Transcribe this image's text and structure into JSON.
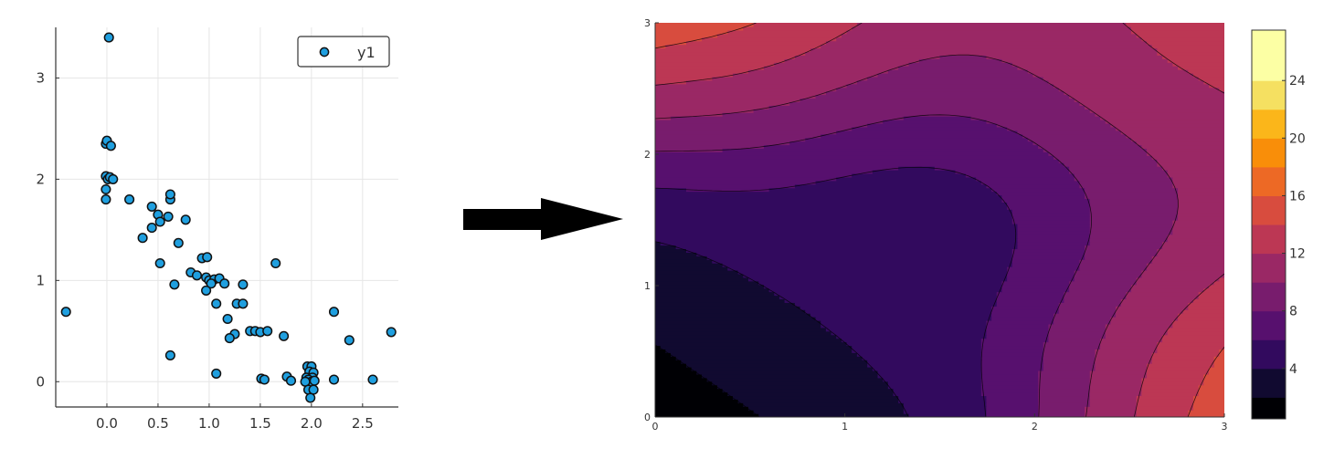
{
  "chart_data": [
    {
      "type": "scatter",
      "title": "",
      "xlabel": "",
      "ylabel": "",
      "xlim": [
        -0.5,
        2.85
      ],
      "ylim": [
        -0.25,
        3.5
      ],
      "xticks": [
        "0.0",
        "0.5",
        "1.0",
        "1.5",
        "2.0",
        "2.5"
      ],
      "xtick_values": [
        0.0,
        0.5,
        1.0,
        1.5,
        2.0,
        2.5
      ],
      "yticks": [
        "0",
        "1",
        "2",
        "3"
      ],
      "ytick_values": [
        0,
        1,
        2,
        3
      ],
      "grid": true,
      "legend": {
        "position": "top-right",
        "entries": [
          "y1"
        ]
      },
      "series": [
        {
          "name": "y1",
          "color": "#1f9fdf",
          "points": [
            [
              -0.4,
              0.69
            ],
            [
              0.02,
              3.4
            ],
            [
              -0.01,
              2.35
            ],
            [
              0.0,
              2.38
            ],
            [
              0.04,
              2.33
            ],
            [
              -0.01,
              2.03
            ],
            [
              0.01,
              2.0
            ],
            [
              0.03,
              2.02
            ],
            [
              0.06,
              2.0
            ],
            [
              -0.01,
              1.9
            ],
            [
              -0.01,
              1.8
            ],
            [
              0.22,
              1.8
            ],
            [
              0.62,
              1.8
            ],
            [
              0.62,
              1.85
            ],
            [
              0.44,
              1.73
            ],
            [
              0.5,
              1.65
            ],
            [
              0.52,
              1.58
            ],
            [
              0.44,
              1.52
            ],
            [
              0.6,
              1.63
            ],
            [
              0.77,
              1.6
            ],
            [
              0.35,
              1.42
            ],
            [
              0.7,
              1.37
            ],
            [
              0.52,
              1.17
            ],
            [
              1.65,
              1.17
            ],
            [
              0.82,
              1.08
            ],
            [
              0.88,
              1.05
            ],
            [
              0.93,
              1.22
            ],
            [
              0.98,
              1.23
            ],
            [
              0.97,
              1.03
            ],
            [
              1.0,
              1.0
            ],
            [
              1.05,
              1.01
            ],
            [
              1.1,
              1.02
            ],
            [
              1.15,
              0.97
            ],
            [
              1.02,
              0.97
            ],
            [
              0.97,
              0.9
            ],
            [
              1.33,
              0.96
            ],
            [
              0.66,
              0.96
            ],
            [
              1.07,
              0.77
            ],
            [
              1.27,
              0.77
            ],
            [
              1.33,
              0.77
            ],
            [
              1.18,
              0.62
            ],
            [
              1.4,
              0.5
            ],
            [
              1.45,
              0.5
            ],
            [
              1.5,
              0.49
            ],
            [
              1.57,
              0.5
            ],
            [
              1.73,
              0.45
            ],
            [
              1.25,
              0.47
            ],
            [
              1.2,
              0.43
            ],
            [
              2.22,
              0.69
            ],
            [
              2.37,
              0.41
            ],
            [
              2.78,
              0.49
            ],
            [
              0.62,
              0.26
            ],
            [
              1.07,
              0.08
            ],
            [
              1.51,
              0.03
            ],
            [
              1.54,
              0.02
            ],
            [
              1.76,
              0.05
            ],
            [
              1.8,
              0.01
            ],
            [
              1.96,
              0.15
            ],
            [
              2.0,
              0.15
            ],
            [
              1.98,
              0.1
            ],
            [
              2.02,
              0.09
            ],
            [
              1.95,
              0.04
            ],
            [
              2.01,
              0.04
            ],
            [
              1.97,
              0.02
            ],
            [
              2.0,
              0.0
            ],
            [
              1.94,
              0.0
            ],
            [
              2.03,
              0.01
            ],
            [
              1.97,
              -0.08
            ],
            [
              2.02,
              -0.08
            ],
            [
              1.99,
              -0.16
            ],
            [
              2.22,
              0.02
            ],
            [
              2.6,
              0.02
            ]
          ]
        }
      ]
    },
    {
      "type": "contour",
      "title": "",
      "xlabel": "",
      "ylabel": "",
      "xlim": [
        0,
        3
      ],
      "ylim": [
        0,
        3
      ],
      "xticks": [
        "0",
        "1",
        "2",
        "3"
      ],
      "xtick_values": [
        0,
        1,
        2,
        3
      ],
      "yticks": [
        "0",
        "1",
        "2",
        "3"
      ],
      "ytick_values": [
        0,
        1,
        2,
        3
      ],
      "levels": [
        2,
        4,
        6,
        8,
        10,
        12,
        14,
        16,
        18,
        20,
        22,
        24,
        26
      ],
      "colorbar": {
        "min": 0.5,
        "max": 27.5,
        "ticks": [
          "4",
          "8",
          "12",
          "16",
          "20",
          "24"
        ],
        "tick_values": [
          4,
          8,
          12,
          16,
          20,
          24
        ],
        "colors": [
          "#000004",
          "#110a30",
          "#320a5e",
          "#57106e",
          "#781c6d",
          "#9a2865",
          "#bc3754",
          "#d84c3e",
          "#ed6925",
          "#f98e09",
          "#fbb61a",
          "#f5e061",
          "#fcffa4"
        ]
      },
      "function": "(x - y)^2 + 2*(x + y) + 0.6*sin(3x) + 0.6*sin(3y)"
    }
  ],
  "arrow": {
    "color": "#000000"
  }
}
